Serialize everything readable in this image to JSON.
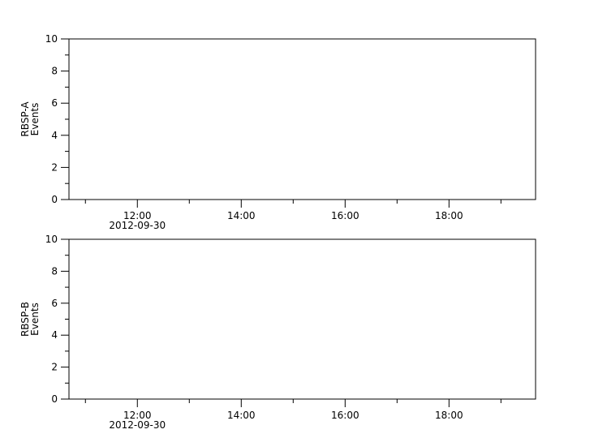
{
  "chart_data": [
    {
      "type": "line",
      "ylabel": [
        "RBSP-A",
        "Events"
      ],
      "ylim": [
        0,
        10
      ],
      "yticks": [
        "0",
        "2",
        "4",
        "6",
        "8",
        "10"
      ],
      "xlim": [
        "2012-09-30 10:41",
        "2012-09-30 19:40"
      ],
      "xticks": [
        "12:00",
        "14:00",
        "16:00",
        "18:00"
      ],
      "xdate_label": "2012-09-30",
      "series": [],
      "grid": false
    },
    {
      "type": "line",
      "ylabel": [
        "RBSP-B",
        "Events"
      ],
      "ylim": [
        0,
        10
      ],
      "yticks": [
        "0",
        "2",
        "4",
        "6",
        "8",
        "10"
      ],
      "xlim": [
        "2012-09-30 10:41",
        "2012-09-30 19:40"
      ],
      "xticks": [
        "12:00",
        "14:00",
        "16:00",
        "18:00"
      ],
      "xdate_label": "2012-09-30",
      "series": [],
      "grid": false
    }
  ]
}
